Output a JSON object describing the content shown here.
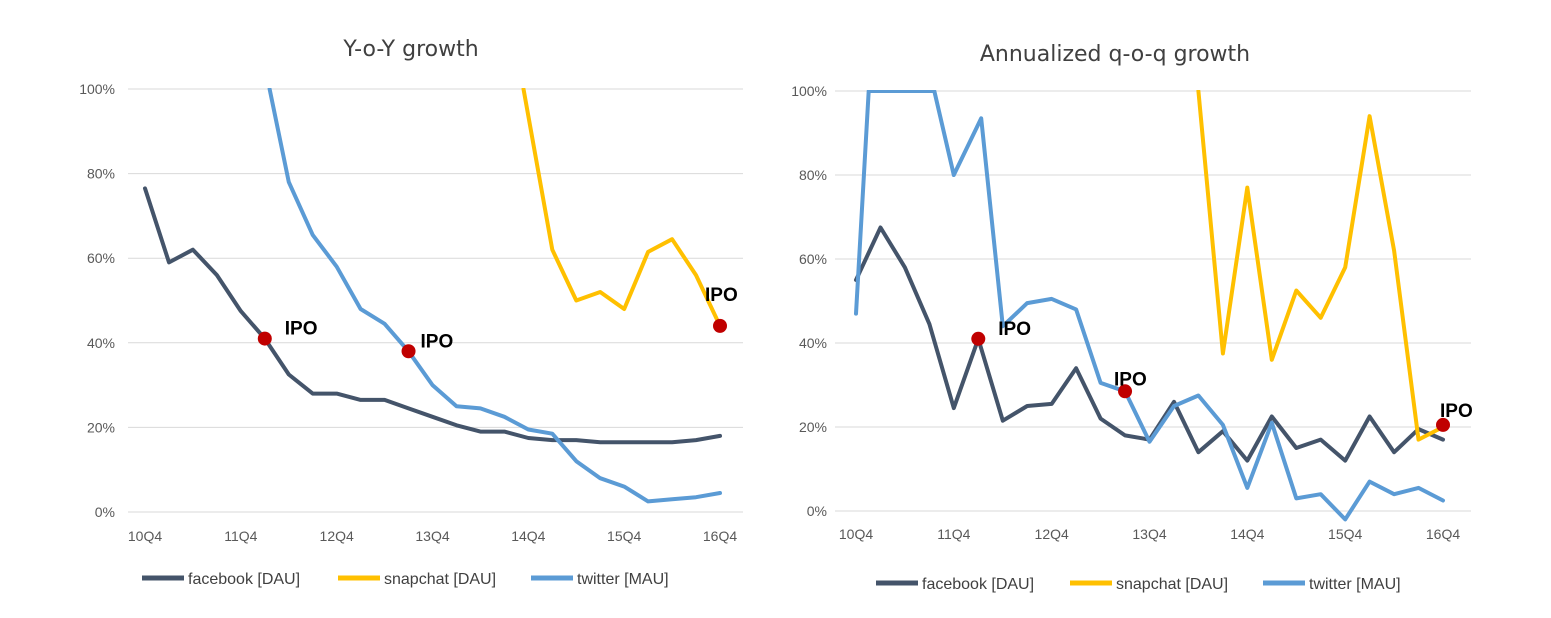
{
  "chart_data": [
    {
      "type": "line",
      "title": "Y-o-Y growth",
      "ylim": [
        0,
        100
      ],
      "yticks": [
        "0%",
        "20%",
        "40%",
        "60%",
        "80%",
        "100%"
      ],
      "xlabels": [
        "10Q4",
        "11Q4",
        "12Q4",
        "13Q4",
        "14Q4",
        "15Q4",
        "16Q4"
      ],
      "grid": true,
      "legend_position": "bottom",
      "series": [
        {
          "name": "facebook [DAU]",
          "color": "#44546a",
          "x": [
            0,
            0.25,
            0.5,
            0.75,
            1,
            1.25,
            1.5,
            1.75,
            2,
            2.25,
            2.5,
            2.75,
            3,
            3.25,
            3.5,
            3.75,
            4,
            4.25,
            4.5,
            4.75,
            5,
            5.25,
            5.5,
            5.75,
            6
          ],
          "y": [
            76.5,
            59,
            62,
            56,
            47.5,
            41,
            32.5,
            28,
            28,
            26.5,
            26.5,
            24.5,
            22.5,
            20.5,
            19,
            19,
            17.5,
            17,
            17,
            16.5,
            16.5,
            16.5,
            16.5,
            17,
            18
          ]
        },
        {
          "name": "snapchat [DAU]",
          "color": "#ffc000",
          "x": [
            3.95,
            4.25,
            4.5,
            4.75,
            5,
            5.25,
            5.5,
            5.75,
            6
          ],
          "y": [
            100,
            62,
            50,
            52,
            48,
            61.5,
            64.5,
            56,
            44
          ]
        },
        {
          "name": "twitter [MAU]",
          "color": "#5b9bd5",
          "x": [
            1.3,
            1.5,
            1.75,
            2,
            2.25,
            2.5,
            2.75,
            3,
            3.25,
            3.5,
            3.75,
            4,
            4.25,
            4.5,
            4.75,
            5,
            5.25,
            5.5,
            5.75,
            6
          ],
          "y": [
            100,
            78,
            65.5,
            58,
            48,
            44.5,
            38,
            30,
            25,
            24.5,
            22.5,
            19.5,
            18.5,
            12,
            8,
            6,
            2.5,
            3,
            3.5,
            4.5
          ]
        }
      ],
      "annotations": [
        {
          "text": "IPO",
          "x": 1.25,
          "y": 41
        },
        {
          "text": "IPO",
          "x": 2.75,
          "y": 38
        },
        {
          "text": "IPO",
          "x": 6,
          "y": 44
        }
      ]
    },
    {
      "type": "line",
      "title": "Annualized q-o-q growth",
      "ylim": [
        0,
        100
      ],
      "yticks": [
        "0%",
        "20%",
        "40%",
        "60%",
        "80%",
        "100%"
      ],
      "xlabels": [
        "10Q4",
        "11Q4",
        "12Q4",
        "13Q4",
        "14Q4",
        "15Q4",
        "16Q4"
      ],
      "grid": true,
      "legend_position": "bottom",
      "series": [
        {
          "name": "facebook [DAU]",
          "color": "#44546a",
          "x": [
            0,
            0.25,
            0.5,
            0.75,
            1,
            1.25,
            1.5,
            1.75,
            2,
            2.25,
            2.5,
            2.75,
            3,
            3.25,
            3.5,
            3.75,
            4,
            4.25,
            4.5,
            4.75,
            5,
            5.25,
            5.5,
            5.75,
            6
          ],
          "y": [
            55,
            67.5,
            58,
            44.5,
            24.5,
            41,
            21.5,
            25,
            25.5,
            34,
            22,
            18,
            17,
            26,
            14,
            19,
            12,
            22.5,
            15,
            17,
            12,
            22.5,
            14,
            19.5,
            17
          ]
        },
        {
          "name": "snapchat [DAU]",
          "color": "#ffc000",
          "x": [
            3.5,
            3.75,
            4,
            4.25,
            4.5,
            4.75,
            5,
            5.25,
            5.5,
            5.75,
            6
          ],
          "y": [
            100,
            37.5,
            77,
            36,
            52.5,
            46,
            58,
            94,
            62,
            17,
            20
          ]
        },
        {
          "name": "twitter [MAU]",
          "color": "#5b9bd5",
          "x": [
            0,
            0.13,
            0.2,
            0.8,
            1,
            1.28,
            1.5,
            1.75,
            2,
            2.25,
            2.5,
            2.75,
            3,
            3.25,
            3.5,
            3.75,
            4,
            4.25,
            4.5,
            4.75,
            5,
            5.25,
            5.5,
            5.75,
            6
          ],
          "y": [
            47,
            100,
            100,
            100,
            80,
            93.5,
            44,
            49.5,
            50.5,
            48,
            30.5,
            28.5,
            16.5,
            25,
            27.5,
            20.5,
            5.5,
            21,
            3,
            4,
            -2,
            7,
            4,
            5.5,
            2.5
          ]
        }
      ],
      "annotations": [
        {
          "text": "IPO",
          "x": 1.25,
          "y": 41
        },
        {
          "text": "IPO",
          "x": 2.75,
          "y": 28.5
        },
        {
          "text": "IPO",
          "x": 6,
          "y": 20.5
        }
      ]
    }
  ]
}
